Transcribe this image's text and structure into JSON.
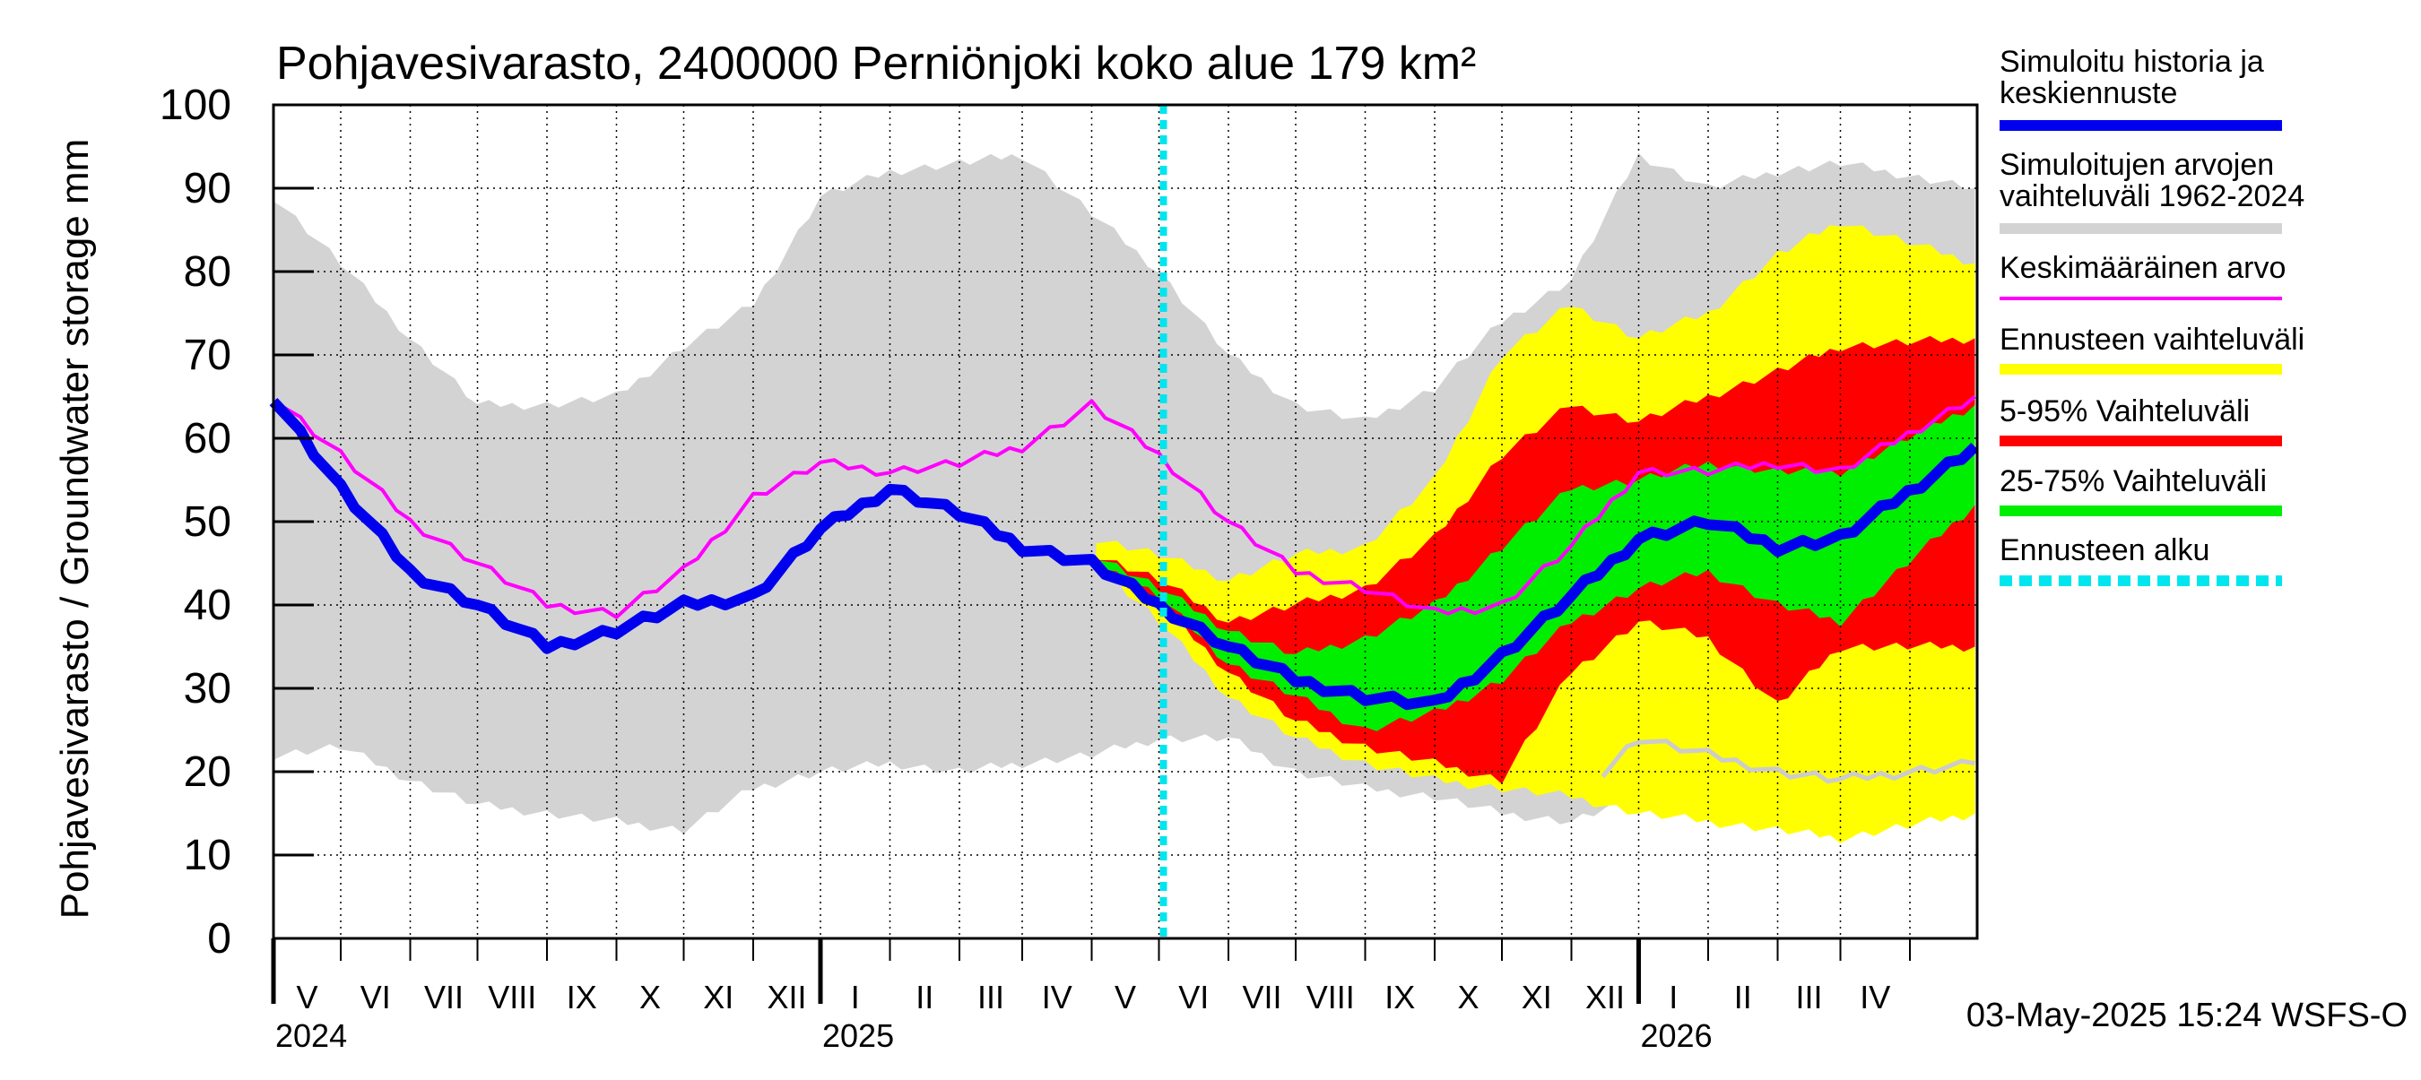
{
  "chart_data": {
    "type": "area",
    "title": "Pohjavesivarasto, 2400000 Perniönjoki koko alue 179 km²",
    "ylabel": "Pohjavesivarasto / Groundwater storage   mm",
    "ylim": [
      0,
      100
    ],
    "yticks": [
      0,
      10,
      20,
      30,
      40,
      50,
      60,
      70,
      80,
      90,
      100
    ],
    "x_start": "2024-04-01",
    "x_end": "2026-04-30",
    "forecast_start": "2025-05-03",
    "months": [
      {
        "date": "2024-04-01",
        "label": "V"
      },
      {
        "date": "2024-05-01",
        "label": "VI"
      },
      {
        "date": "2024-06-01",
        "label": "VII"
      },
      {
        "date": "2024-07-01",
        "label": "VIII"
      },
      {
        "date": "2024-08-01",
        "label": "IX"
      },
      {
        "date": "2024-09-01",
        "label": "X"
      },
      {
        "date": "2024-10-01",
        "label": "XI"
      },
      {
        "date": "2024-11-01",
        "label": "XII"
      },
      {
        "date": "2024-12-01",
        "label": "I"
      },
      {
        "date": "2025-01-01",
        "label": "II"
      },
      {
        "date": "2025-02-01",
        "label": "III"
      },
      {
        "date": "2025-03-01",
        "label": "IV"
      },
      {
        "date": "2025-04-01",
        "label": "V"
      },
      {
        "date": "2025-05-01",
        "label": "VI"
      },
      {
        "date": "2025-06-01",
        "label": "VII"
      },
      {
        "date": "2025-07-01",
        "label": "VIII"
      },
      {
        "date": "2025-08-01",
        "label": "IX"
      },
      {
        "date": "2025-09-01",
        "label": "X"
      },
      {
        "date": "2025-10-01",
        "label": "XI"
      },
      {
        "date": "2025-11-01",
        "label": "XII"
      },
      {
        "date": "2025-12-01",
        "label": "I"
      },
      {
        "date": "2026-01-01",
        "label": "II"
      },
      {
        "date": "2026-02-01",
        "label": "III"
      },
      {
        "date": "2026-03-01",
        "label": "IV"
      },
      {
        "date": "2026-04-01",
        "label": ""
      }
    ],
    "years": [
      {
        "date": "2024-04-01",
        "label": "2024"
      },
      {
        "date": "2024-12-01",
        "label": "2025"
      },
      {
        "date": "2025-12-01",
        "label": "2026"
      }
    ],
    "series": [
      {
        "name": "Simuloitujen arvojen vaihteluväli 1962-2024",
        "color": "#d3d3d3",
        "x": [
          "2024-04-01",
          "2024-05-01",
          "2024-06-01",
          "2024-07-01",
          "2024-08-01",
          "2024-09-01",
          "2024-10-01",
          "2024-11-01",
          "2024-12-01",
          "2025-01-01",
          "2025-02-01",
          "2025-03-01",
          "2025-04-01",
          "2025-05-01",
          "2025-06-01",
          "2025-07-01",
          "2025-08-01",
          "2025-09-01",
          "2025-10-01",
          "2025-11-01",
          "2025-12-01",
          "2026-01-01",
          "2026-02-01",
          "2026-03-01",
          "2026-04-30"
        ],
        "upper": [
          89,
          81,
          72,
          64,
          64,
          65,
          71,
          76,
          89,
          92,
          93,
          94,
          87,
          80,
          70,
          64,
          62,
          66,
          74,
          79,
          94,
          90,
          92,
          93,
          90
        ],
        "lower": [
          22,
          23,
          19,
          16,
          15,
          14,
          13,
          18,
          20,
          21,
          20,
          21,
          22,
          24,
          24,
          20,
          18,
          17,
          15,
          14,
          17,
          19,
          20,
          21,
          22
        ]
      },
      {
        "name": "Ennusteen vaihteluväli",
        "color": "#ffff00",
        "x": [
          "2025-04-03",
          "2025-05-01",
          "2025-06-01",
          "2025-07-01",
          "2025-08-01",
          "2025-09-01",
          "2025-10-01",
          "2025-11-01",
          "2025-12-01",
          "2026-01-01",
          "2026-02-01",
          "2026-03-01",
          "2026-04-30"
        ],
        "upper": [
          48,
          46,
          43,
          46,
          47,
          55,
          70,
          76,
          72,
          75,
          82,
          86,
          81
        ],
        "lower": [
          45,
          38,
          29,
          24,
          21,
          19,
          18,
          17,
          15,
          14,
          13,
          12,
          15
        ]
      },
      {
        "name": "5-95% Vaihteluväli",
        "color": "#ff0000",
        "x": [
          "2025-04-03",
          "2025-05-01",
          "2025-06-01",
          "2025-07-01",
          "2025-08-01",
          "2025-09-01",
          "2025-10-01",
          "2025-11-01",
          "2025-12-01",
          "2026-01-01",
          "2026-02-01",
          "2026-03-01",
          "2026-04-30"
        ],
        "upper": [
          46,
          43,
          38,
          40,
          42,
          48,
          58,
          64,
          62,
          65,
          68,
          71,
          72
        ],
        "lower": [
          45,
          40,
          32,
          26,
          23,
          21,
          19,
          32,
          38,
          36,
          28,
          35,
          35
        ]
      },
      {
        "name": "25-75% Vaihteluväli",
        "color": "#00ee00",
        "x": [
          "2025-04-03",
          "2025-05-01",
          "2025-06-01",
          "2025-07-01",
          "2025-08-01",
          "2025-09-01",
          "2025-10-01",
          "2025-11-01",
          "2025-12-01",
          "2026-01-01",
          "2026-02-01",
          "2026-03-01",
          "2026-04-30"
        ],
        "upper": [
          46,
          42,
          37,
          34,
          36,
          40,
          47,
          54,
          55,
          57,
          56,
          56,
          64
        ],
        "lower": [
          45,
          41,
          33,
          29,
          25,
          27,
          31,
          38,
          42,
          44,
          40,
          38,
          52
        ]
      },
      {
        "name": "Keskimääräinen arvo",
        "color": "#ff00ff",
        "x": [
          "2024-04-01",
          "2024-05-01",
          "2024-06-01",
          "2024-07-01",
          "2024-08-01",
          "2024-09-01",
          "2024-10-01",
          "2024-11-01",
          "2024-12-01",
          "2025-01-01",
          "2025-02-01",
          "2025-03-01",
          "2025-04-01",
          "2025-05-01",
          "2025-06-01",
          "2025-07-01",
          "2025-08-01",
          "2025-09-01",
          "2025-10-01",
          "2025-11-01",
          "2025-12-01",
          "2026-01-01",
          "2026-02-01",
          "2026-03-01",
          "2026-04-30"
        ],
        "values": [
          65,
          58,
          50,
          45,
          40,
          39,
          44,
          53,
          57,
          56,
          57,
          59,
          64,
          58,
          50,
          44,
          42,
          39,
          40,
          47,
          56,
          56,
          57,
          56,
          65
        ]
      },
      {
        "name": "Simuloitu historia ja keskiennuste",
        "color": "#0000ee",
        "x": [
          "2024-04-01",
          "2024-05-01",
          "2024-06-01",
          "2024-07-01",
          "2024-08-01",
          "2024-09-01",
          "2024-10-01",
          "2024-11-01",
          "2024-12-01",
          "2025-01-01",
          "2025-02-01",
          "2025-03-01",
          "2025-04-01",
          "2025-05-01",
          "2025-06-01",
          "2025-07-01",
          "2025-08-01",
          "2025-09-01",
          "2025-10-01",
          "2025-11-01",
          "2025-12-01",
          "2026-01-01",
          "2026-02-01",
          "2026-03-01",
          "2026-04-30"
        ],
        "values": [
          65,
          54,
          44,
          40,
          35,
          37,
          40,
          41,
          49,
          54,
          51,
          47,
          45,
          40,
          35,
          31,
          29,
          28,
          34,
          41,
          48,
          50,
          47,
          48,
          59
        ]
      },
      {
        "name": "",
        "color": "#cccccc",
        "x": [
          "2025-11-15",
          "2025-12-01",
          "2026-01-01",
          "2026-02-01",
          "2026-03-01",
          "2026-04-30"
        ],
        "values": [
          20,
          24,
          22,
          20,
          19,
          21
        ]
      }
    ],
    "forecast_line": {
      "name": "Ennusteen alku",
      "color": "#00e5ee"
    },
    "legend": {
      "placement": "right",
      "entries": [
        {
          "label": "Simuloitu historia ja keskiennuste",
          "color": "#0000ee"
        },
        {
          "label": "Simuloitujen arvojen vaihteluväli 1962-2024",
          "color": "#d3d3d3"
        },
        {
          "label": "Keskimääräinen arvo",
          "color": "#ff00ff"
        },
        {
          "label": "Ennusteen vaihteluväli",
          "color": "#ffff00"
        },
        {
          "label": "5-95% Vaihteluväli",
          "color": "#ff0000"
        },
        {
          "label": "25-75% Vaihteluväli",
          "color": "#00ee00"
        },
        {
          "label": "Ennusteen alku",
          "color": "#00e5ee",
          "dashed": true
        }
      ]
    },
    "footer": "03-May-2025 15:24 WSFS-O",
    "grid": true
  }
}
